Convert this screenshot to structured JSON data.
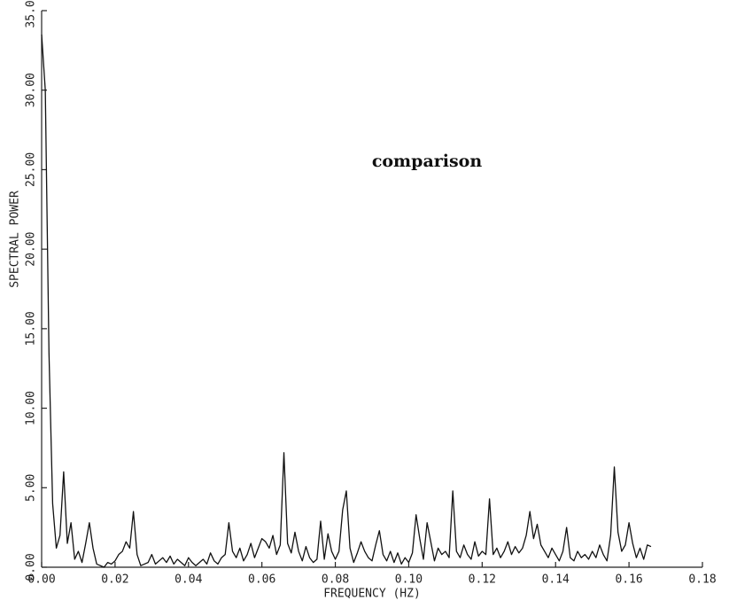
{
  "chart_data": {
    "type": "line",
    "title": "comparison",
    "xlabel": "FREQUENCY (HZ)",
    "ylabel": "SPECTRAL POWER",
    "color": "#111111",
    "x": [
      0,
      0.001,
      0.002,
      0.003,
      0.004,
      0.005,
      0.006,
      0.007,
      0.008,
      0.009,
      0.01,
      0.011,
      0.012,
      0.013,
      0.014,
      0.015,
      0.016,
      0.017,
      0.018,
      0.019,
      0.02,
      0.021,
      0.022,
      0.023,
      0.024,
      0.025,
      0.026,
      0.027,
      0.028,
      0.029,
      0.03,
      0.031,
      0.032,
      0.033,
      0.034,
      0.035,
      0.036,
      0.037,
      0.038,
      0.039,
      0.04,
      0.041,
      0.042,
      0.043,
      0.044,
      0.045,
      0.046,
      0.047,
      0.048,
      0.049,
      0.05,
      0.051,
      0.052,
      0.053,
      0.054,
      0.055,
      0.056,
      0.057,
      0.058,
      0.059,
      0.06,
      0.061,
      0.062,
      0.063,
      0.064,
      0.065,
      0.066,
      0.067,
      0.068,
      0.069,
      0.07,
      0.071,
      0.072,
      0.073,
      0.074,
      0.075,
      0.076,
      0.077,
      0.078,
      0.079,
      0.08,
      0.081,
      0.082,
      0.083,
      0.084,
      0.085,
      0.086,
      0.087,
      0.088,
      0.089,
      0.09,
      0.091,
      0.092,
      0.093,
      0.094,
      0.095,
      0.096,
      0.097,
      0.098,
      0.099,
      0.1,
      0.101,
      0.102,
      0.103,
      0.104,
      0.105,
      0.106,
      0.107,
      0.108,
      0.109,
      0.11,
      0.111,
      0.112,
      0.113,
      0.114,
      0.115,
      0.116,
      0.117,
      0.118,
      0.119,
      0.12,
      0.121,
      0.122,
      0.123,
      0.124,
      0.125,
      0.126,
      0.127,
      0.128,
      0.129,
      0.13,
      0.131,
      0.132,
      0.133,
      0.134,
      0.135,
      0.136,
      0.137,
      0.138,
      0.139,
      0.14,
      0.141,
      0.142,
      0.143,
      0.144,
      0.145,
      0.146,
      0.147,
      0.148,
      0.149,
      0.15,
      0.151,
      0.152,
      0.153,
      0.154,
      0.155,
      0.156,
      0.157,
      0.158,
      0.159,
      0.16,
      0.161,
      0.162,
      0.163,
      0.164,
      0.165,
      0.166
    ],
    "values": [
      33.5,
      30,
      13.5,
      4,
      1.2,
      2,
      6,
      1.5,
      2.8,
      0.5,
      1.0,
      0.3,
      1.5,
      2.8,
      1.2,
      0.2,
      0.1,
      0.0,
      0.3,
      0.2,
      0.4,
      0.8,
      1.0,
      1.6,
      1.2,
      3.5,
      0.8,
      0.1,
      0.2,
      0.3,
      0.8,
      0.2,
      0.4,
      0.6,
      0.3,
      0.7,
      0.2,
      0.5,
      0.3,
      0.1,
      0.6,
      0.3,
      0.1,
      0.3,
      0.5,
      0.2,
      0.9,
      0.4,
      0.2,
      0.6,
      0.8,
      2.8,
      1.0,
      0.6,
      1.2,
      0.4,
      0.8,
      1.5,
      0.6,
      1.2,
      1.8,
      1.6,
      1.2,
      2.0,
      0.8,
      1.4,
      7.2,
      1.5,
      0.9,
      2.2,
      1.0,
      0.4,
      1.3,
      0.6,
      0.3,
      0.5,
      2.9,
      0.5,
      2.1,
      1.0,
      0.5,
      1.0,
      3.6,
      4.8,
      1.2,
      0.3,
      0.9,
      1.6,
      1.0,
      0.6,
      0.4,
      1.4,
      2.3,
      0.8,
      0.4,
      1.0,
      0.3,
      0.9,
      0.2,
      0.6,
      0.3,
      0.9,
      3.3,
      1.8,
      0.5,
      2.8,
      1.6,
      0.4,
      1.2,
      0.8,
      1.0,
      0.6,
      4.8,
      1.0,
      0.6,
      1.4,
      0.8,
      0.5,
      1.6,
      0.7,
      1.0,
      0.8,
      4.3,
      0.8,
      1.2,
      0.6,
      1.0,
      1.6,
      0.8,
      1.3,
      0.9,
      1.2,
      2.0,
      3.5,
      1.8,
      2.7,
      1.4,
      1.0,
      0.6,
      1.2,
      0.8,
      0.4,
      1.0,
      2.5,
      0.6,
      0.4,
      1.0,
      0.6,
      0.8,
      0.5,
      1.0,
      0.6,
      1.4,
      0.8,
      0.4,
      2.0,
      6.3,
      2.2,
      1.0,
      1.4,
      2.8,
      1.5,
      0.6,
      1.2,
      0.5,
      1.4,
      1.3
    ],
    "xlim": [
      0,
      0.18
    ],
    "ylim": [
      0,
      35
    ],
    "xticks": [
      {
        "value": 0,
        "label": "0.00"
      },
      {
        "value": 0.02,
        "label": "0.02"
      },
      {
        "value": 0.04,
        "label": "0.04"
      },
      {
        "value": 0.06,
        "label": "0.06"
      },
      {
        "value": 0.08,
        "label": "0.08"
      },
      {
        "value": 0.1,
        "label": "0.10"
      },
      {
        "value": 0.12,
        "label": "0.12"
      },
      {
        "value": 0.14,
        "label": "0.14"
      },
      {
        "value": 0.16,
        "label": "0.16"
      },
      {
        "value": 0.18,
        "label": "0.18"
      }
    ],
    "yticks": [
      {
        "value": 0,
        "label": "0.00"
      },
      {
        "value": 5,
        "label": "5.00"
      },
      {
        "value": 10,
        "label": "10.00"
      },
      {
        "value": 15,
        "label": "15.00"
      },
      {
        "value": 20,
        "label": "20.00"
      },
      {
        "value": 25,
        "label": "25.00"
      },
      {
        "value": 30,
        "label": "30.00"
      },
      {
        "value": 35,
        "label": "35.00"
      }
    ],
    "grid": false
  }
}
